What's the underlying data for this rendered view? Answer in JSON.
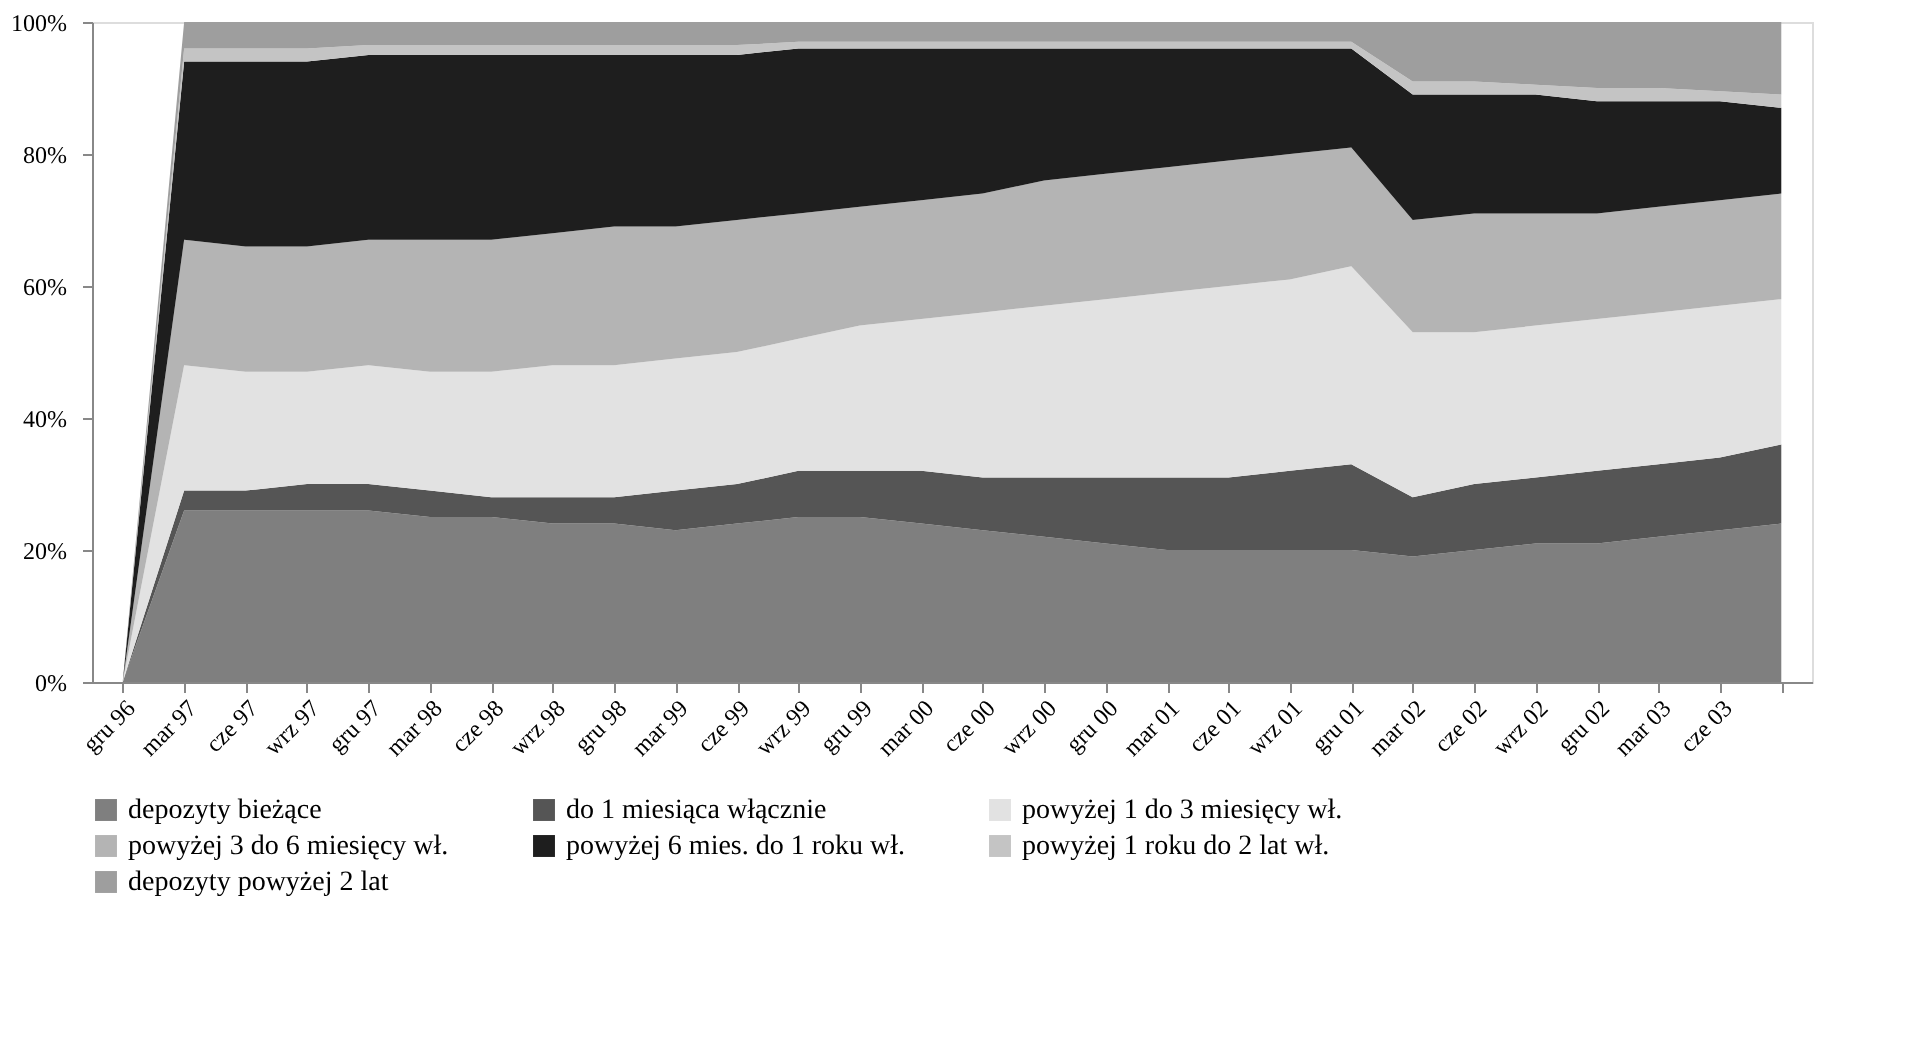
{
  "chart_data": {
    "type": "area",
    "stacked": true,
    "legend": "bottom",
    "grid": false,
    "categories": [
      "gru 96",
      "mar 97",
      "cze 97",
      "wrz 97",
      "gru 97",
      "mar 98",
      "cze 98",
      "wrz 98",
      "gru 98",
      "mar 99",
      "cze 99",
      "wrz 99",
      "gru 99",
      "mar 00",
      "cze 00",
      "wrz 00",
      "gru 00",
      "mar 01",
      "cze 01",
      "wrz 01",
      "gru 01",
      "mar 02",
      "cze 02",
      "wrz 02",
      "gru 02",
      "mar 03",
      "cze 03",
      null
    ],
    "ylim": [
      0,
      100
    ],
    "yticks": [
      {
        "value": 0,
        "label": "0%"
      },
      {
        "value": 20,
        "label": "20%"
      },
      {
        "value": 40,
        "label": "40%"
      },
      {
        "value": 60,
        "label": "60%"
      },
      {
        "value": 80,
        "label": "80%"
      },
      {
        "value": 100,
        "label": "100%"
      }
    ],
    "series": [
      {
        "name": "depozyty bieżące",
        "color": "#7f7f7f",
        "values": [
          0,
          26,
          26,
          26,
          26,
          25,
          25,
          24,
          24,
          23,
          24,
          25,
          25,
          24,
          23,
          22,
          21,
          20,
          20,
          20,
          20,
          19,
          20,
          21,
          21,
          22,
          23,
          24
        ]
      },
      {
        "name": "do 1 miesiąca włącznie",
        "color": "#555555",
        "values": [
          0,
          3,
          3,
          4,
          4,
          4,
          3,
          4,
          4,
          6,
          6,
          7,
          7,
          8,
          8,
          9,
          10,
          11,
          11,
          12,
          13,
          9,
          10,
          10,
          11,
          11,
          11,
          12
        ]
      },
      {
        "name": "powyżej 1 do 3 miesięcy wł.",
        "color": "#e2e2e2",
        "values": [
          0,
          19,
          18,
          17,
          18,
          18,
          19,
          20,
          20,
          20,
          20,
          20,
          22,
          23,
          25,
          26,
          27,
          28,
          29,
          29,
          30,
          25,
          23,
          23,
          23,
          23,
          23,
          22
        ]
      },
      {
        "name": "powyżej 3 do 6 miesięcy wł.",
        "color": "#b4b4b4",
        "values": [
          0,
          19,
          19,
          19,
          19,
          20,
          20,
          20,
          21,
          20,
          20,
          19,
          18,
          18,
          18,
          19,
          19,
          19,
          19,
          19,
          18,
          17,
          18,
          17,
          16,
          16,
          16,
          16
        ]
      },
      {
        "name": "powyżej 6 mies. do 1 roku wł.",
        "color": "#1e1e1e",
        "values": [
          0,
          27,
          28,
          28,
          28,
          28,
          28,
          27,
          26,
          26,
          25,
          25,
          24,
          23,
          22,
          20,
          19,
          18,
          17,
          16,
          15,
          19,
          18,
          18,
          17,
          16,
          15,
          13
        ]
      },
      {
        "name": "powyżej 1 roku do 2 lat wł.",
        "color": "#c4c4c4",
        "values": [
          0,
          2,
          2,
          2,
          1.5,
          1.5,
          1.5,
          1.5,
          1.5,
          1.5,
          1.5,
          1,
          1,
          1,
          1,
          1,
          1,
          1,
          1,
          1,
          1,
          2,
          2,
          1.5,
          2,
          2,
          1.5,
          2
        ]
      },
      {
        "name": "depozyty powyżej 2 lat",
        "color": "#9e9e9e",
        "values": [
          0,
          4,
          4,
          4,
          3.5,
          3.5,
          3.5,
          3.5,
          3.5,
          3.5,
          3.5,
          3,
          3,
          3,
          3,
          3,
          3,
          3,
          3,
          3,
          3,
          9,
          9,
          9.5,
          10,
          10,
          10.5,
          11
        ]
      }
    ]
  }
}
